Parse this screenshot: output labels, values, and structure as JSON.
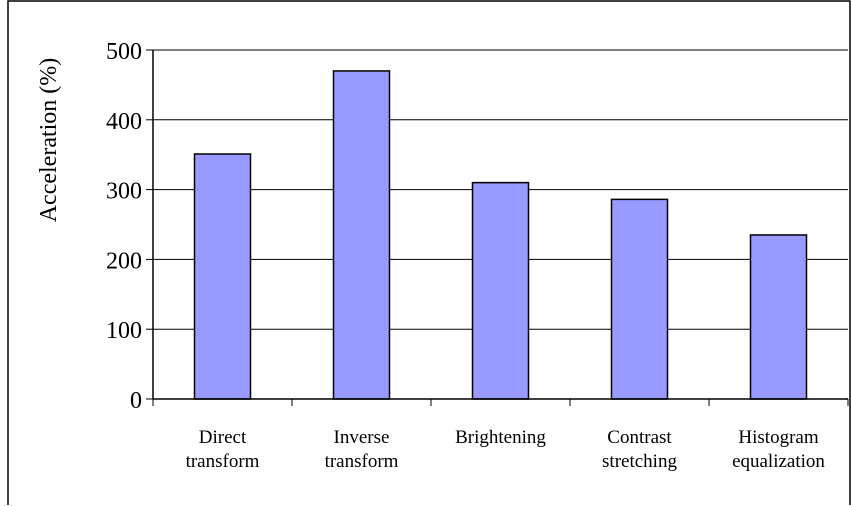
{
  "chart_data": {
    "type": "bar",
    "categories": [
      [
        "Direct",
        "transform"
      ],
      [
        "Inverse",
        "transform"
      ],
      [
        "Brightening"
      ],
      [
        "Contrast",
        "stretching"
      ],
      [
        "Histogram",
        "equalization"
      ]
    ],
    "values": [
      351,
      470,
      310,
      286,
      235
    ],
    "ylabel": "Acceleration (%)",
    "ylim": [
      0,
      500
    ],
    "yticks": [
      0,
      100,
      200,
      300,
      400,
      500
    ],
    "grid": true,
    "bar_color": "#9999ff",
    "bar_edge_color": "#000000"
  }
}
